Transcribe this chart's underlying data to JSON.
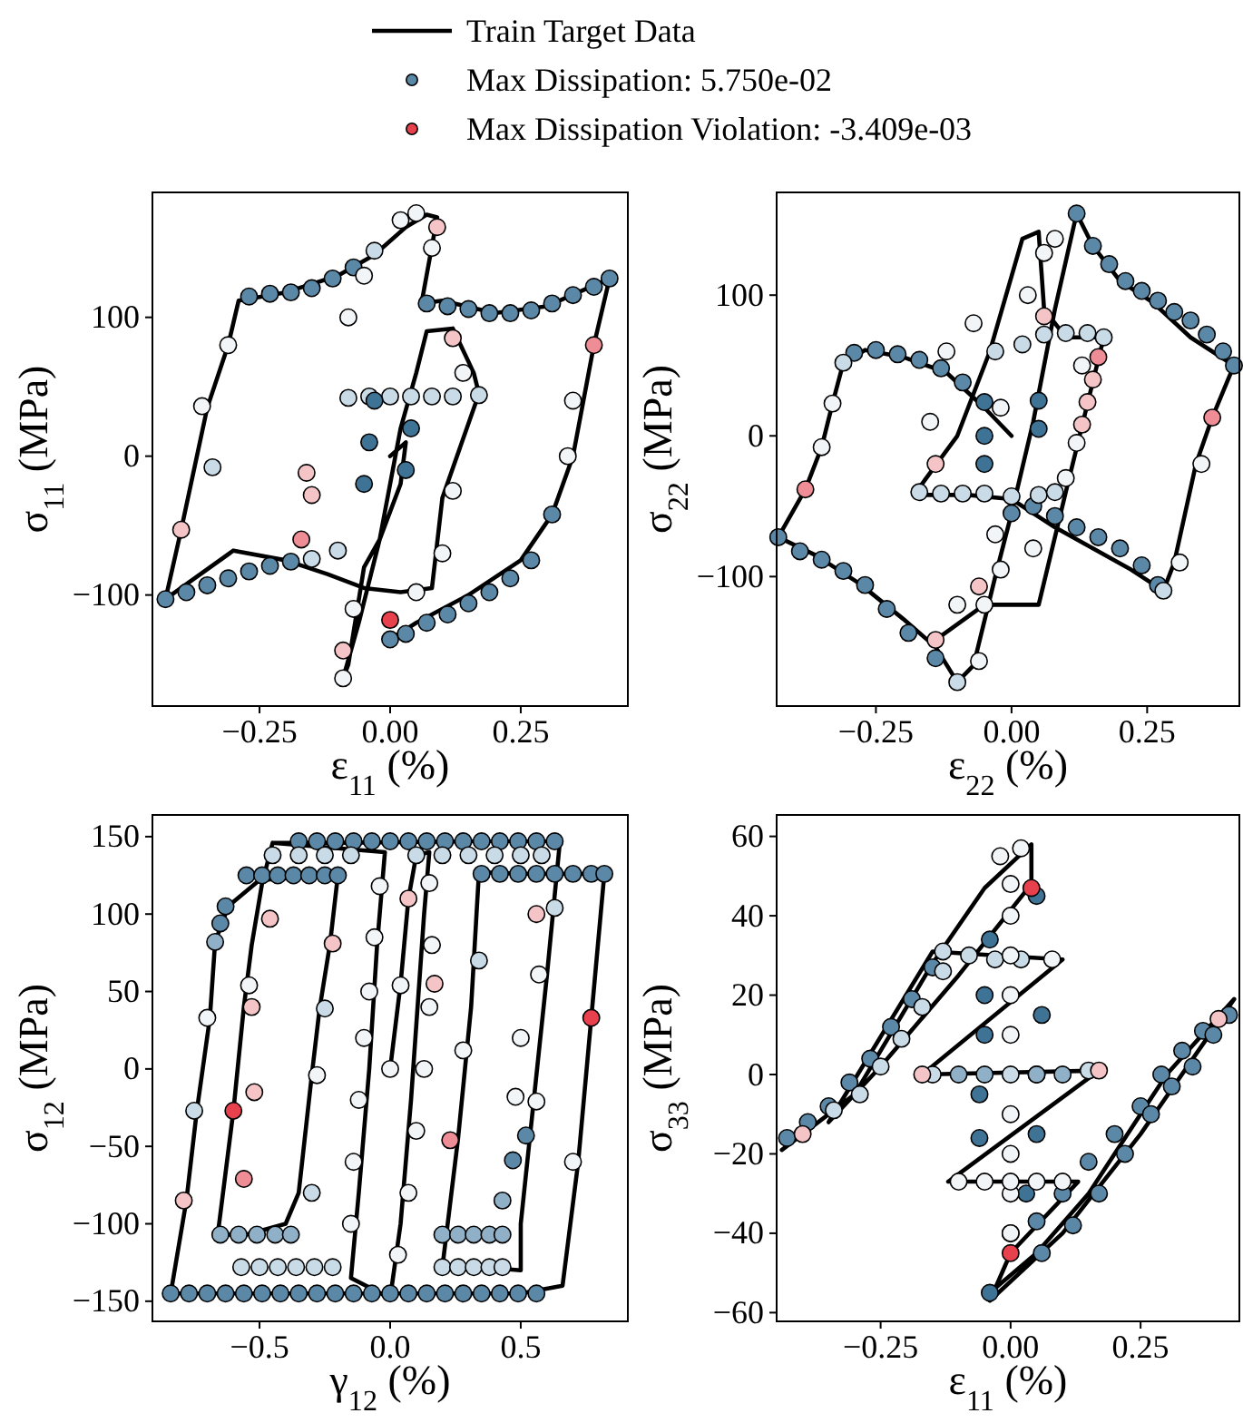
{
  "chart_data": [
    {
      "type": "scatter",
      "xlabel": "ε$_{11}$ (%)",
      "ylabel": "σ$_{11}$ (MPa)",
      "legend": "top",
      "line_style": "solid",
      "grid": false,
      "xlim": [
        -0.455,
        0.455
      ],
      "ylim": [
        -180,
        190
      ],
      "xticks": [
        {
          "value": -0.25,
          "label": "−0.25"
        },
        {
          "value": 0,
          "label": "0.00"
        },
        {
          "value": 0.25,
          "label": "0.25"
        }
      ],
      "yticks": [
        {
          "value": -100,
          "label": "−100"
        },
        0,
        100
      ],
      "series": [
        {
          "type": "line",
          "marker": "none",
          "name": "Train Target Data",
          "color": "#000000",
          "x": [
            0,
            0.03,
            0.02,
            -0.02,
            -0.05,
            -0.08,
            -0.09,
            -0.06,
            -0.02,
            0.02,
            0.05,
            0.07,
            0.12,
            0.16,
            0.17,
            0.1,
            0.08,
            0.02,
            -0.05,
            -0.12,
            -0.2,
            -0.3,
            -0.43,
            -0.4,
            -0.35,
            -0.31,
            -0.29,
            -0.2,
            -0.1,
            -0.03,
            0.03,
            0.07,
            0.09,
            0.06,
            0.1,
            0.2,
            0.3,
            0.42,
            0.39,
            0.35,
            0.31,
            0.25,
            0.15,
            0.05,
            0
          ],
          "values": [
            0,
            10,
            -20,
            -60,
            -80,
            -150,
            -160,
            -120,
            -60,
            20,
            60,
            90,
            92,
            60,
            45,
            -30,
            -95,
            -98,
            -95,
            -85,
            -75,
            -68,
            -103,
            -53,
            35,
            80,
            112,
            118,
            130,
            145,
            165,
            174,
            172,
            110,
            112,
            103,
            108,
            128,
            80,
            0,
            -42,
            -75,
            -100,
            -120,
            -132
          ]
        },
        {
          "marker": "circle",
          "name": "Max Dissipation: 5.750e-02",
          "color": "#5b88a6",
          "x": [
            -0.27,
            -0.23,
            -0.19,
            -0.15,
            -0.11,
            -0.07,
            -0.03,
            0.07,
            0.11,
            0.15,
            0.19,
            0.23,
            0.27,
            0.31,
            0.35,
            0.39,
            0.42,
            -0.43,
            -0.39,
            -0.35,
            -0.31,
            -0.27,
            -0.23,
            -0.19,
            -0.15,
            -0.1,
            0,
            0.03,
            0.07,
            0.11,
            0.15,
            0.19,
            0.23,
            0.27,
            0.31,
            -0.08,
            -0.04,
            0,
            0.04,
            0.08,
            0.12,
            0.17,
            -0.05,
            -0.04,
            -0.03,
            0.03,
            0.04,
            -0.36,
            -0.31,
            -0.34,
            -0.09,
            -0.07,
            0.02,
            0.05,
            0.08,
            -0.08,
            -0.05,
            0.35,
            0.34,
            0.12,
            0.1,
            0.05,
            0.14
          ],
          "values": [
            115,
            117,
            118,
            121,
            128,
            136,
            148,
            110,
            108,
            106,
            103,
            103,
            105,
            110,
            116,
            122,
            128,
            -103,
            -98,
            -93,
            -88,
            -83,
            -79,
            -76,
            -74,
            -68,
            -132,
            -128,
            -120,
            -114,
            -106,
            -98,
            -88,
            -75,
            -42,
            42,
            43,
            43,
            43,
            43,
            43,
            44,
            -20,
            10,
            40,
            -10,
            20,
            36,
            80,
            -8,
            -160,
            -110,
            170,
            175,
            150,
            100,
            130,
            40,
            0,
            -25,
            -70,
            -98,
            60
          ],
          "colors": [
            "#5b88a6",
            "#5b88a6",
            "#5b88a6",
            "#5b88a6",
            "#5b88a6",
            "#5b88a6",
            "#c9dbe6",
            "#5b88a6",
            "#5b88a6",
            "#5b88a6",
            "#5b88a6",
            "#5b88a6",
            "#5b88a6",
            "#5b88a6",
            "#5b88a6",
            "#5b88a6",
            "#5b88a6",
            "#5b88a6",
            "#5b88a6",
            "#5b88a6",
            "#5b88a6",
            "#5b88a6",
            "#5b88a6",
            "#5b88a6",
            "#c9dbe6",
            "#c9dbe6",
            "#5b88a6",
            "#5b88a6",
            "#5b88a6",
            "#5b88a6",
            "#5b88a6",
            "#5b88a6",
            "#5b88a6",
            "#5b88a6",
            "#5b88a6",
            "#c9dbe6",
            "#c9dbe6",
            "#c9dbe6",
            "#c9dbe6",
            "#c9dbe6",
            "#c9dbe6",
            "#c9dbe6",
            "#3f7396",
            "#3f7396",
            "#3f7396",
            "#3f7396",
            "#3f7396",
            "#f2f5f8",
            "#f2f5f8",
            "#c9dbe6",
            "#f2f5f8",
            "#f2f5f8",
            "#f2f5f8",
            "#f2f5f8",
            "#f2f5f8",
            "#f2f5f8",
            "#f2f5f8",
            "#f2f5f8",
            "#f2f5f8",
            "#f2f5f8",
            "#f2f5f8",
            "#f2f5f8",
            "#f2f5f8"
          ]
        },
        {
          "marker": "circle",
          "name": "Max Dissipation Violation: -3.409e-03",
          "color": "#e8414e",
          "x": [
            -0.4,
            -0.17,
            -0.15,
            -0.16,
            0.39,
            0.12,
            0,
            0.09,
            -0.09
          ],
          "values": [
            -53,
            -60,
            -28,
            -12,
            80,
            85,
            -118,
            165,
            -140
          ],
          "colors": [
            "#f5c4c6",
            "#ee8d95",
            "#f5c4c6",
            "#f5c4c6",
            "#ee8d95",
            "#f5c4c6",
            "#e8414e",
            "#f5c4c6",
            "#f5c4c6"
          ]
        }
      ]
    },
    {
      "type": "scatter",
      "xlabel": "ε$_{22}$ (%)",
      "ylabel": "σ$_{22}$ (MPa)",
      "line_style": "solid",
      "grid": false,
      "xlim": [
        -0.433,
        0.42
      ],
      "ylim": [
        -192,
        173
      ],
      "xticks": [
        {
          "value": -0.25,
          "label": "−0.25"
        },
        {
          "value": 0,
          "label": "0.00"
        },
        {
          "value": 0.25,
          "label": "0.25"
        }
      ],
      "yticks": [
        {
          "value": -100,
          "label": "−100"
        },
        0,
        100
      ],
      "series": [
        {
          "type": "line",
          "marker": "none",
          "color": "#000000",
          "x": [
            0,
            -0.05,
            -0.12,
            -0.2,
            -0.27,
            -0.31,
            -0.33,
            -0.35,
            -0.38,
            -0.43,
            -0.36,
            -0.28,
            -0.2,
            -0.14,
            -0.1,
            -0.07,
            -0.03,
            0,
            0.04,
            0.08,
            0.12,
            0.15,
            0.2,
            0.26,
            0.33,
            0.41,
            0.37,
            0.34,
            0.3,
            0.28,
            0.22,
            0.15,
            0.08,
            0,
            -0.08,
            -0.18,
            -0.1,
            -0.04,
            0.02,
            0.05,
            0.06,
            0.1,
            0.17,
            0.1,
            0.05,
            -0.05,
            -0.14
          ],
          "values": [
            0,
            20,
            45,
            56,
            61,
            52,
            23,
            -8,
            -38,
            -72,
            -85,
            -105,
            -130,
            -150,
            -175,
            -163,
            -100,
            -55,
            10,
            90,
            158,
            135,
            110,
            95,
            70,
            50,
            13,
            -20,
            -90,
            -110,
            -95,
            -80,
            -65,
            -45,
            -42,
            -42,
            0,
            60,
            140,
            145,
            90,
            70,
            70,
            -40,
            -120,
            -120,
            -145
          ]
        },
        {
          "marker": "circle",
          "x": [
            -0.29,
            -0.25,
            -0.21,
            -0.17,
            -0.13,
            -0.09,
            -0.05,
            -0.05,
            -0.05,
            0.05,
            0.05,
            -0.43,
            -0.39,
            -0.35,
            -0.31,
            -0.27,
            -0.23,
            -0.19,
            -0.14,
            0.12,
            0.15,
            0.18,
            0.21,
            0.24,
            0.27,
            0.3,
            0.33,
            0.36,
            0.39,
            0.41,
            0,
            0.04,
            0.08,
            0.12,
            0.16,
            0.2,
            0.24,
            0.27,
            -0.17,
            -0.13,
            -0.09,
            -0.05,
            0,
            0.05,
            0.08,
            -0.03,
            0.02,
            0.06,
            0.1,
            0.14,
            0.17,
            -0.1,
            0.28,
            -0.31,
            -0.33,
            -0.35,
            -0.15,
            -0.12,
            -0.07,
            -0.03,
            -0.06,
            0.35,
            0.31,
            0.13,
            0.08,
            0.06,
            0.03,
            -0.02,
            -0.1,
            -0.05,
            0.1,
            0.04,
            0.12,
            -0.02
          ],
          "values": [
            59,
            61,
            58,
            54,
            48,
            38,
            24,
            0,
            -20,
            25,
            5,
            -72,
            -82,
            -88,
            -96,
            -106,
            -123,
            -140,
            -158,
            158,
            135,
            122,
            110,
            103,
            96,
            88,
            82,
            72,
            60,
            50,
            -55,
            -50,
            -57,
            -65,
            -72,
            -80,
            -92,
            -106,
            -40,
            -41,
            -41,
            -41,
            -43,
            -42,
            -40,
            60,
            65,
            72,
            73,
            73,
            70,
            -175,
            -110,
            52,
            23,
            -8,
            10,
            60,
            80,
            -70,
            -160,
            -20,
            -90,
            50,
            140,
            130,
            100,
            20,
            -120,
            -120,
            -30,
            -80,
            -5,
            -95
          ],
          "colors": [
            "#5b88a6",
            "#5b88a6",
            "#5b88a6",
            "#5b88a6",
            "#5b88a6",
            "#5b88a6",
            "#3f7396",
            "#3f7396",
            "#3f7396",
            "#3f7396",
            "#3f7396",
            "#5b88a6",
            "#5b88a6",
            "#5b88a6",
            "#5b88a6",
            "#5b88a6",
            "#5b88a6",
            "#5b88a6",
            "#5b88a6",
            "#5b88a6",
            "#5b88a6",
            "#5b88a6",
            "#5b88a6",
            "#5b88a6",
            "#5b88a6",
            "#5b88a6",
            "#5b88a6",
            "#5b88a6",
            "#5b88a6",
            "#5b88a6",
            "#5b88a6",
            "#5b88a6",
            "#5b88a6",
            "#5b88a6",
            "#5b88a6",
            "#5b88a6",
            "#5b88a6",
            "#5b88a6",
            "#c9dbe6",
            "#c9dbe6",
            "#c9dbe6",
            "#c9dbe6",
            "#c9dbe6",
            "#c9dbe6",
            "#c9dbe6",
            "#c9dbe6",
            "#c9dbe6",
            "#c9dbe6",
            "#c9dbe6",
            "#c9dbe6",
            "#c9dbe6",
            "#c9dbe6",
            "#c9dbe6",
            "#c9dbe6",
            "#f2f5f8",
            "#f2f5f8",
            "#f2f5f8",
            "#f2f5f8",
            "#f2f5f8",
            "#f2f5f8",
            "#f2f5f8",
            "#f2f5f8",
            "#f2f5f8",
            "#f2f5f8",
            "#f2f5f8",
            "#f2f5f8",
            "#f2f5f8",
            "#f2f5f8",
            "#f2f5f8",
            "#f2f5f8",
            "#f2f5f8",
            "#f2f5f8",
            "#f2f5f8",
            "#f2f5f8"
          ]
        },
        {
          "marker": "circle",
          "x": [
            -0.38,
            0.37,
            0.16,
            0.15,
            0.14,
            0.13,
            -0.14,
            -0.06,
            0.06,
            -0.14
          ],
          "values": [
            -38,
            13,
            56,
            40,
            24,
            8,
            -145,
            -107,
            85,
            -20
          ],
          "colors": [
            "#ee8d95",
            "#ee8d95",
            "#ee8d95",
            "#f5c4c6",
            "#f5c4c6",
            "#f5c4c6",
            "#f5c4c6",
            "#f5c4c6",
            "#f5c4c6",
            "#f5c4c6"
          ]
        }
      ]
    },
    {
      "type": "scatter",
      "xlabel": "γ$_{12}$ (%)",
      "ylabel": "σ$_{12}$ (MPa)",
      "line_style": "solid",
      "grid": false,
      "xlim": [
        -0.91,
        0.91
      ],
      "ylim": [
        -163,
        164
      ],
      "xticks": [
        {
          "value": -0.5,
          "label": "−0.5"
        },
        {
          "value": 0,
          "label": "0.0"
        },
        {
          "value": 0.5,
          "label": "0.5"
        }
      ],
      "yticks": [
        {
          "value": -150,
          "label": "−150"
        },
        {
          "value": -100,
          "label": "−100"
        },
        {
          "value": -50,
          "label": "−50"
        },
        0,
        50,
        100,
        150
      ],
      "series": [
        {
          "type": "line",
          "marker": "none",
          "color": "#000000",
          "x": [
            0,
            0.04,
            0.07,
            0.1,
            0.15,
            0.13,
            0.08,
            0.04,
            0,
            -0.15,
            -0.12,
            -0.08,
            -0.05,
            -0.02,
            -0.45,
            -0.2,
            0.3,
            0.65,
            0.6,
            0.55,
            0.5,
            0.5,
            0.35,
            0.2,
            0.26,
            0.31,
            0.34,
            0.5,
            0.82,
            0.77,
            0.72,
            0.66,
            0.5,
            0,
            -0.5,
            -0.84,
            -0.78,
            -0.74,
            -0.69,
            -0.67,
            -0.62,
            -0.5,
            -0.2,
            -0.23,
            -0.27,
            -0.3,
            -0.35,
            -0.4,
            -0.55,
            -0.66,
            -0.6,
            -0.56,
            -0.53,
            -0.49,
            -0.45
          ],
          "values": [
            0,
            55,
            110,
            138,
            140,
            100,
            -20,
            -100,
            -148,
            -135,
            -80,
            0,
            80,
            140,
            146,
            146,
            147,
            147,
            60,
            -20,
            -100,
            -130,
            -128,
            -128,
            -45,
            40,
            127,
            126,
            126,
            33,
            -60,
            -140,
            -145,
            -145,
            -145,
            -145,
            -85,
            -27,
            33,
            82,
            105,
            122,
            125,
            81,
            39,
            -4,
            -80,
            -100,
            -107,
            -107,
            -27,
            40,
            80,
            120,
            146
          ]
        },
        {
          "marker": "circle",
          "x": [
            -0.84,
            -0.77,
            -0.7,
            -0.63,
            -0.56,
            -0.49,
            -0.42,
            -0.35,
            -0.28,
            -0.21,
            -0.14,
            -0.07,
            0,
            0.07,
            0.14,
            0.21,
            0.28,
            0.35,
            0.42,
            0.49,
            0.56,
            -0.35,
            -0.28,
            -0.21,
            -0.14,
            -0.07,
            0,
            0.07,
            0.14,
            0.21,
            0.28,
            0.35,
            0.42,
            0.49,
            0.56,
            0.63,
            0.35,
            0.42,
            0.49,
            0.56,
            0.63,
            0.7,
            0.77,
            0.82,
            -0.55,
            -0.49,
            -0.43,
            -0.37,
            -0.31,
            -0.25,
            -0.2,
            -0.63,
            -0.65,
            -0.67,
            0.52,
            0.47,
            0.43,
            -0.65,
            -0.58,
            -0.51,
            -0.44,
            -0.38,
            0.2,
            0.26,
            0.32,
            0.38,
            0.43,
            -0.57,
            -0.5,
            -0.43,
            -0.36,
            -0.29,
            -0.22,
            0.2,
            0.26,
            0.32,
            0.38,
            0.43,
            -0.45,
            -0.35,
            -0.25,
            -0.15,
            0.1,
            0.2,
            0.3,
            0.4,
            0.5,
            0.58,
            -0.75,
            -0.7,
            -0.54,
            -0.28,
            -0.25,
            0,
            0.04,
            -0.04,
            -0.06,
            -0.08,
            -0.1,
            -0.12,
            -0.14,
            -0.15,
            0.15,
            0.16,
            0.15,
            0.13,
            0.1,
            0.07,
            0.03,
            0.28,
            0.34,
            0.5,
            0.57,
            0.63,
            0.7,
            0.48,
            0.56,
            -0.3
          ],
          "values": [
            -145,
            -145,
            -145,
            -145,
            -145,
            -145,
            -145,
            -145,
            -145,
            -145,
            -145,
            -145,
            -145,
            -145,
            -145,
            -145,
            -145,
            -145,
            -145,
            -145,
            -145,
            147,
            147,
            147,
            147,
            147,
            147,
            147,
            147,
            147,
            147,
            147,
            147,
            147,
            147,
            147,
            126,
            126,
            126,
            126,
            126,
            126,
            126,
            126,
            125,
            125,
            125,
            125,
            125,
            125,
            125,
            105,
            94,
            82,
            -43,
            -59,
            -85,
            -107,
            -107,
            -107,
            -107,
            -107,
            -107,
            -107,
            -107,
            -107,
            -107,
            -128,
            -128,
            -128,
            -128,
            -128,
            -128,
            -128,
            -128,
            -128,
            -128,
            -128,
            138,
            138,
            138,
            138,
            138,
            138,
            138,
            138,
            138,
            138,
            -27,
            33,
            54,
            -4,
            39,
            0,
            54,
            118,
            85,
            50,
            20,
            -20,
            -60,
            -100,
            120,
            80,
            40,
            0,
            -40,
            -80,
            -120,
            12,
            70,
            20,
            61,
            104,
            -60,
            -18,
            -21,
            -80
          ],
          "colors": [
            "#5b88a6",
            "#5b88a6",
            "#5b88a6",
            "#5b88a6",
            "#5b88a6",
            "#5b88a6",
            "#5b88a6",
            "#5b88a6",
            "#5b88a6",
            "#5b88a6",
            "#5b88a6",
            "#5b88a6",
            "#5b88a6",
            "#5b88a6",
            "#5b88a6",
            "#5b88a6",
            "#5b88a6",
            "#5b88a6",
            "#5b88a6",
            "#5b88a6",
            "#5b88a6",
            "#5b88a6",
            "#5b88a6",
            "#5b88a6",
            "#5b88a6",
            "#5b88a6",
            "#5b88a6",
            "#5b88a6",
            "#5b88a6",
            "#5b88a6",
            "#5b88a6",
            "#5b88a6",
            "#5b88a6",
            "#5b88a6",
            "#5b88a6",
            "#5b88a6",
            "#5b88a6",
            "#5b88a6",
            "#5b88a6",
            "#5b88a6",
            "#5b88a6",
            "#5b88a6",
            "#5b88a6",
            "#5b88a6",
            "#5b88a6",
            "#5b88a6",
            "#5b88a6",
            "#5b88a6",
            "#5b88a6",
            "#5b88a6",
            "#5b88a6",
            "#5b88a6",
            "#5b88a6",
            "#8fb0c6",
            "#5b88a6",
            "#5b88a6",
            "#8fb0c6",
            "#8fb0c6",
            "#8fb0c6",
            "#8fb0c6",
            "#8fb0c6",
            "#8fb0c6",
            "#8fb0c6",
            "#8fb0c6",
            "#8fb0c6",
            "#8fb0c6",
            "#8fb0c6",
            "#c9dbe6",
            "#c9dbe6",
            "#c9dbe6",
            "#c9dbe6",
            "#c9dbe6",
            "#c9dbe6",
            "#c9dbe6",
            "#c9dbe6",
            "#c9dbe6",
            "#c9dbe6",
            "#c9dbe6",
            "#c9dbe6",
            "#c9dbe6",
            "#c9dbe6",
            "#c9dbe6",
            "#c9dbe6",
            "#c9dbe6",
            "#c9dbe6",
            "#c9dbe6",
            "#c9dbe6",
            "#c9dbe6",
            "#c9dbe6",
            "#f2f5f8",
            "#f2f5f8",
            "#f2f5f8",
            "#c9dbe6",
            "#f2f5f8",
            "#f2f5f8",
            "#f2f5f8",
            "#f2f5f8",
            "#f2f5f8",
            "#f2f5f8",
            "#f2f5f8",
            "#f2f5f8",
            "#f2f5f8",
            "#f2f5f8",
            "#f2f5f8",
            "#f2f5f8",
            "#f2f5f8",
            "#f2f5f8",
            "#f2f5f8",
            "#f2f5f8",
            "#f2f5f8",
            "#c9dbe6",
            "#f2f5f8",
            "#f2f5f8",
            "#c9dbe6",
            "#f2f5f8",
            "#f2f5f8",
            "#f2f5f8",
            "#c9dbe6"
          ]
        },
        {
          "marker": "circle",
          "x": [
            -0.6,
            0.77,
            -0.79,
            -0.56,
            -0.53,
            -0.52,
            -0.46,
            -0.22,
            0.07,
            0.17,
            0.23,
            0.56
          ],
          "values": [
            -27,
            33,
            -85,
            -71,
            40,
            -15,
            97,
            81,
            110,
            55,
            -46,
            100
          ],
          "colors": [
            "#e8414e",
            "#e8414e",
            "#f5c4c6",
            "#ee8d95",
            "#f5c4c6",
            "#f5c4c6",
            "#f5c4c6",
            "#f5c4c6",
            "#f5c4c6",
            "#f5c4c6",
            "#ee8d95",
            "#f5c4c6"
          ]
        }
      ]
    },
    {
      "type": "scatter",
      "xlabel": "ε$_{11}$ (%)",
      "ylabel": "σ$_{33}$ (MPa)",
      "line_style": "solid",
      "grid": false,
      "xlim": [
        -0.45,
        0.44
      ],
      "ylim": [
        -62.2,
        65.4
      ],
      "xticks": [
        {
          "value": -0.25,
          "label": "−0.25"
        },
        {
          "value": 0,
          "label": "0.00"
        },
        {
          "value": 0.25,
          "label": "0.25"
        }
      ],
      "yticks": [
        {
          "value": -60,
          "label": "−60"
        },
        {
          "value": -40,
          "label": "−40"
        },
        {
          "value": -20,
          "label": "−20"
        },
        0,
        20,
        40,
        60
      ],
      "series": [
        {
          "type": "line",
          "marker": "none",
          "color": "#000000",
          "x": [
            -0.44,
            -0.3,
            -0.15,
            -0.05,
            0.04,
            0.04,
            -0.1,
            -0.25,
            -0.35,
            -0.15,
            0.1,
            -0.17,
            0.17,
            -0.12,
            0.13,
            0,
            -0.04,
            0.1,
            0.25,
            0.43,
            0.3,
            0.15,
            0.05,
            -0.04
          ],
          "values": [
            -19,
            -5,
            28,
            47,
            58,
            48,
            25,
            2,
            -12,
            31,
            29,
            0,
            1,
            -27,
            -27,
            -45,
            -57,
            -40,
            -15,
            19,
            0,
            -30,
            -45,
            -55
          ]
        },
        {
          "marker": "circle",
          "x": [
            -0.43,
            -0.39,
            -0.35,
            -0.31,
            -0.27,
            -0.23,
            -0.19,
            -0.15,
            -0.34,
            -0.29,
            -0.25,
            -0.21,
            -0.17,
            -0.13,
            -0.04,
            -0.05,
            -0.05,
            -0.06,
            -0.06,
            0.05,
            0.06,
            0.05,
            0.05,
            0.03,
            0,
            0.05,
            0.1,
            0.15,
            0.2,
            0.25,
            0.29,
            0.33,
            0.37,
            0.42,
            0.06,
            0.12,
            0.17,
            0.22,
            0.27,
            0.31,
            0.35,
            0.39,
            -0.15,
            -0.1,
            -0.05,
            0,
            0.05,
            0.1,
            0.15,
            -0.13,
            -0.08,
            -0.03,
            0.02,
            -0.04,
            0,
            0,
            0,
            0,
            0,
            0,
            0,
            0,
            0,
            -0.1,
            -0.05,
            0,
            0.05,
            0.1,
            0.08,
            -0.02,
            0.02
          ],
          "values": [
            -16,
            -12,
            -8,
            -2,
            4,
            12,
            19,
            27,
            -9,
            -5,
            2,
            9,
            17,
            26,
            34,
            20,
            10,
            -5,
            -16,
            45,
            15,
            0,
            -15,
            -30,
            -40,
            -37,
            -30,
            -22,
            -15,
            -8,
            0,
            6,
            11,
            15,
            -45,
            -38,
            -30,
            -20,
            -10,
            -3,
            2,
            10,
            0,
            0,
            0,
            0,
            0,
            0,
            1,
            31,
            30,
            29,
            29,
            -55,
            48,
            40,
            30,
            20,
            10,
            -10,
            -20,
            -30,
            -40,
            -27,
            -27,
            -27,
            -27,
            -27,
            29,
            55,
            57
          ],
          "colors": [
            "#5b88a6",
            "#5b88a6",
            "#5b88a6",
            "#5b88a6",
            "#5b88a6",
            "#5b88a6",
            "#5b88a6",
            "#5b88a6",
            "#c9dbe6",
            "#c9dbe6",
            "#c9dbe6",
            "#c9dbe6",
            "#c9dbe6",
            "#c9dbe6",
            "#3f7396",
            "#3f7396",
            "#3f7396",
            "#3f7396",
            "#3f7396",
            "#3f7396",
            "#3f7396",
            "#3f7396",
            "#3f7396",
            "#3f7396",
            "#5b88a6",
            "#5b88a6",
            "#5b88a6",
            "#5b88a6",
            "#5b88a6",
            "#5b88a6",
            "#5b88a6",
            "#5b88a6",
            "#5b88a6",
            "#5b88a6",
            "#5b88a6",
            "#5b88a6",
            "#5b88a6",
            "#5b88a6",
            "#5b88a6",
            "#5b88a6",
            "#5b88a6",
            "#5b88a6",
            "#c9dbe6",
            "#8fb0c6",
            "#8fb0c6",
            "#c9dbe6",
            "#8fb0c6",
            "#8fb0c6",
            "#c9dbe6",
            "#c9dbe6",
            "#c9dbe6",
            "#c9dbe6",
            "#c9dbe6",
            "#3f7396",
            "#f2f5f8",
            "#f2f5f8",
            "#f2f5f8",
            "#f2f5f8",
            "#f2f5f8",
            "#f2f5f8",
            "#f2f5f8",
            "#f2f5f8",
            "#f2f5f8",
            "#f2f5f8",
            "#f2f5f8",
            "#f2f5f8",
            "#f2f5f8",
            "#f2f5f8",
            "#f2f5f8",
            "#f2f5f8",
            "#f2f5f8"
          ]
        },
        {
          "marker": "circle",
          "x": [
            -0.4,
            0.4,
            0,
            -0.17,
            0.17,
            0.04
          ],
          "values": [
            -15,
            14,
            -45,
            0,
            1,
            47
          ],
          "colors": [
            "#f5c4c6",
            "#f5c4c6",
            "#e8414e",
            "#f5c4c6",
            "#f5c4c6",
            "#e8414e"
          ]
        }
      ]
    }
  ]
}
